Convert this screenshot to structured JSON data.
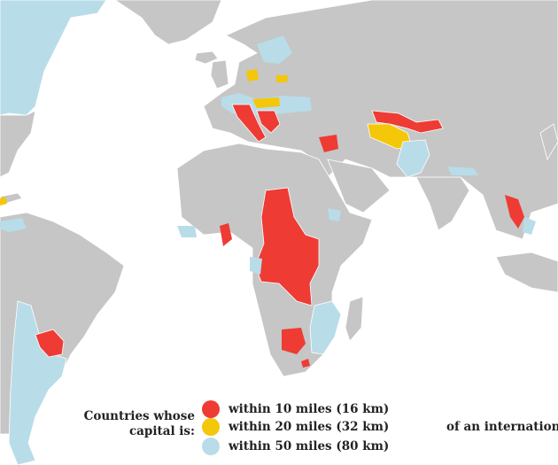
{
  "colors": {
    "land": "#c6c6c6",
    "ocean": "#ffffff",
    "within_10": "#ee3b34",
    "within_20": "#f4c708",
    "within_50": "#b9dce9"
  },
  "legend": {
    "title_line1": "Countries whose",
    "title_line2": "capital is:",
    "items": [
      {
        "label": "within 10 miles (16 km)",
        "color": "#ee3b34"
      },
      {
        "label": "within 20 miles (32 km)",
        "color": "#f4c708"
      },
      {
        "label": "within 50 miles (80 km)",
        "color": "#b9dce9"
      }
    ],
    "suffix": "of an international border"
  }
}
